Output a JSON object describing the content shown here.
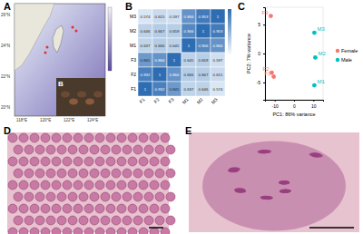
{
  "map": {
    "panel_label": "A",
    "inset_label": "B",
    "lat_labels": [
      "26°N",
      "24°N",
      "22°N",
      "20°N"
    ],
    "lon_labels": [
      "118°E",
      "120°E",
      "122°E",
      "124°E"
    ]
  },
  "chart_data": [
    {
      "type": "heatmap",
      "panel_label": "B",
      "x_categories": [
        "F1",
        "F2",
        "F3",
        "M1",
        "M2",
        "M3"
      ],
      "y_categories": [
        "M3",
        "M2",
        "M1",
        "F3",
        "F2",
        "F1"
      ],
      "cells": [
        [
          0.574,
          0.615,
          0.597,
          0.866,
          0.953,
          1
        ],
        [
          0.646,
          0.667,
          0.659,
          0.906,
          1,
          0.953
        ],
        [
          0.637,
          0.666,
          0.645,
          1,
          0.906,
          0.866
        ],
        [
          0.845,
          0.866,
          1,
          0.645,
          0.659,
          0.597
        ],
        [
          0.932,
          1,
          0.866,
          0.666,
          0.667,
          0.615
        ],
        [
          1,
          0.932,
          0.845,
          0.637,
          0.646,
          0.574
        ]
      ],
      "data_labels": true,
      "colorbar_range": [
        0.5,
        1
      ]
    },
    {
      "type": "scatter",
      "panel_label": "C",
      "x_label": "PC1: 86% variance",
      "y_label": "PC2: 7% variance",
      "series": [
        {
          "name": "Female",
          "color": "#f8766d",
          "x": [
            -10.5,
            -11.5,
            -12
          ],
          "values": [
            -4,
            -3.3,
            6.5
          ],
          "point_labels": [
            "F1",
            "F2",
            "F3"
          ]
        },
        {
          "name": "Male",
          "color": "#00bfc4",
          "x": [
            10.5,
            11,
            10.5
          ],
          "values": [
            -5.5,
            -0.7,
            3.6
          ],
          "point_labels": [
            "M1",
            "M2",
            "M3"
          ]
        }
      ],
      "xlim": [
        -15,
        15
      ],
      "ylim": [
        -8,
        8
      ],
      "xticks": [
        -10,
        0,
        10
      ],
      "yticks": [
        -5,
        0,
        5
      ],
      "legend": "right"
    }
  ],
  "images": [
    {
      "panel_label": "D"
    },
    {
      "panel_label": "E"
    }
  ]
}
